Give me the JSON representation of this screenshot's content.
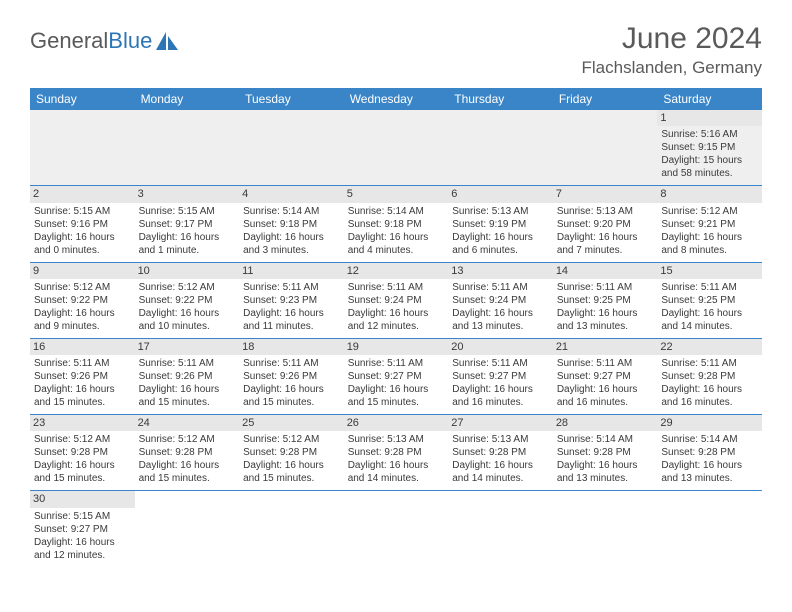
{
  "branding": {
    "word1": "General",
    "word2": "Blue",
    "logo_shape_color": "#2e75b6",
    "text_color": "#5a5a5a"
  },
  "header": {
    "month_title": "June 2024",
    "location": "Flachslanden, Germany"
  },
  "colors": {
    "header_bg": "#3a85c8",
    "header_text": "#ffffff",
    "daynum_bg": "#e7e7e7",
    "row_border": "#3a85c8",
    "body_text": "#3a3a3a",
    "first_row_bg": "#efefef"
  },
  "calendar": {
    "day_headers": [
      "Sunday",
      "Monday",
      "Tuesday",
      "Wednesday",
      "Thursday",
      "Friday",
      "Saturday"
    ],
    "weeks": [
      [
        null,
        null,
        null,
        null,
        null,
        null,
        {
          "n": "1",
          "sunrise": "Sunrise: 5:16 AM",
          "sunset": "Sunset: 9:15 PM",
          "daylight1": "Daylight: 15 hours",
          "daylight2": "and 58 minutes."
        }
      ],
      [
        {
          "n": "2",
          "sunrise": "Sunrise: 5:15 AM",
          "sunset": "Sunset: 9:16 PM",
          "daylight1": "Daylight: 16 hours",
          "daylight2": "and 0 minutes."
        },
        {
          "n": "3",
          "sunrise": "Sunrise: 5:15 AM",
          "sunset": "Sunset: 9:17 PM",
          "daylight1": "Daylight: 16 hours",
          "daylight2": "and 1 minute."
        },
        {
          "n": "4",
          "sunrise": "Sunrise: 5:14 AM",
          "sunset": "Sunset: 9:18 PM",
          "daylight1": "Daylight: 16 hours",
          "daylight2": "and 3 minutes."
        },
        {
          "n": "5",
          "sunrise": "Sunrise: 5:14 AM",
          "sunset": "Sunset: 9:18 PM",
          "daylight1": "Daylight: 16 hours",
          "daylight2": "and 4 minutes."
        },
        {
          "n": "6",
          "sunrise": "Sunrise: 5:13 AM",
          "sunset": "Sunset: 9:19 PM",
          "daylight1": "Daylight: 16 hours",
          "daylight2": "and 6 minutes."
        },
        {
          "n": "7",
          "sunrise": "Sunrise: 5:13 AM",
          "sunset": "Sunset: 9:20 PM",
          "daylight1": "Daylight: 16 hours",
          "daylight2": "and 7 minutes."
        },
        {
          "n": "8",
          "sunrise": "Sunrise: 5:12 AM",
          "sunset": "Sunset: 9:21 PM",
          "daylight1": "Daylight: 16 hours",
          "daylight2": "and 8 minutes."
        }
      ],
      [
        {
          "n": "9",
          "sunrise": "Sunrise: 5:12 AM",
          "sunset": "Sunset: 9:22 PM",
          "daylight1": "Daylight: 16 hours",
          "daylight2": "and 9 minutes."
        },
        {
          "n": "10",
          "sunrise": "Sunrise: 5:12 AM",
          "sunset": "Sunset: 9:22 PM",
          "daylight1": "Daylight: 16 hours",
          "daylight2": "and 10 minutes."
        },
        {
          "n": "11",
          "sunrise": "Sunrise: 5:11 AM",
          "sunset": "Sunset: 9:23 PM",
          "daylight1": "Daylight: 16 hours",
          "daylight2": "and 11 minutes."
        },
        {
          "n": "12",
          "sunrise": "Sunrise: 5:11 AM",
          "sunset": "Sunset: 9:24 PM",
          "daylight1": "Daylight: 16 hours",
          "daylight2": "and 12 minutes."
        },
        {
          "n": "13",
          "sunrise": "Sunrise: 5:11 AM",
          "sunset": "Sunset: 9:24 PM",
          "daylight1": "Daylight: 16 hours",
          "daylight2": "and 13 minutes."
        },
        {
          "n": "14",
          "sunrise": "Sunrise: 5:11 AM",
          "sunset": "Sunset: 9:25 PM",
          "daylight1": "Daylight: 16 hours",
          "daylight2": "and 13 minutes."
        },
        {
          "n": "15",
          "sunrise": "Sunrise: 5:11 AM",
          "sunset": "Sunset: 9:25 PM",
          "daylight1": "Daylight: 16 hours",
          "daylight2": "and 14 minutes."
        }
      ],
      [
        {
          "n": "16",
          "sunrise": "Sunrise: 5:11 AM",
          "sunset": "Sunset: 9:26 PM",
          "daylight1": "Daylight: 16 hours",
          "daylight2": "and 15 minutes."
        },
        {
          "n": "17",
          "sunrise": "Sunrise: 5:11 AM",
          "sunset": "Sunset: 9:26 PM",
          "daylight1": "Daylight: 16 hours",
          "daylight2": "and 15 minutes."
        },
        {
          "n": "18",
          "sunrise": "Sunrise: 5:11 AM",
          "sunset": "Sunset: 9:26 PM",
          "daylight1": "Daylight: 16 hours",
          "daylight2": "and 15 minutes."
        },
        {
          "n": "19",
          "sunrise": "Sunrise: 5:11 AM",
          "sunset": "Sunset: 9:27 PM",
          "daylight1": "Daylight: 16 hours",
          "daylight2": "and 15 minutes."
        },
        {
          "n": "20",
          "sunrise": "Sunrise: 5:11 AM",
          "sunset": "Sunset: 9:27 PM",
          "daylight1": "Daylight: 16 hours",
          "daylight2": "and 16 minutes."
        },
        {
          "n": "21",
          "sunrise": "Sunrise: 5:11 AM",
          "sunset": "Sunset: 9:27 PM",
          "daylight1": "Daylight: 16 hours",
          "daylight2": "and 16 minutes."
        },
        {
          "n": "22",
          "sunrise": "Sunrise: 5:11 AM",
          "sunset": "Sunset: 9:28 PM",
          "daylight1": "Daylight: 16 hours",
          "daylight2": "and 16 minutes."
        }
      ],
      [
        {
          "n": "23",
          "sunrise": "Sunrise: 5:12 AM",
          "sunset": "Sunset: 9:28 PM",
          "daylight1": "Daylight: 16 hours",
          "daylight2": "and 15 minutes."
        },
        {
          "n": "24",
          "sunrise": "Sunrise: 5:12 AM",
          "sunset": "Sunset: 9:28 PM",
          "daylight1": "Daylight: 16 hours",
          "daylight2": "and 15 minutes."
        },
        {
          "n": "25",
          "sunrise": "Sunrise: 5:12 AM",
          "sunset": "Sunset: 9:28 PM",
          "daylight1": "Daylight: 16 hours",
          "daylight2": "and 15 minutes."
        },
        {
          "n": "26",
          "sunrise": "Sunrise: 5:13 AM",
          "sunset": "Sunset: 9:28 PM",
          "daylight1": "Daylight: 16 hours",
          "daylight2": "and 14 minutes."
        },
        {
          "n": "27",
          "sunrise": "Sunrise: 5:13 AM",
          "sunset": "Sunset: 9:28 PM",
          "daylight1": "Daylight: 16 hours",
          "daylight2": "and 14 minutes."
        },
        {
          "n": "28",
          "sunrise": "Sunrise: 5:14 AM",
          "sunset": "Sunset: 9:28 PM",
          "daylight1": "Daylight: 16 hours",
          "daylight2": "and 13 minutes."
        },
        {
          "n": "29",
          "sunrise": "Sunrise: 5:14 AM",
          "sunset": "Sunset: 9:28 PM",
          "daylight1": "Daylight: 16 hours",
          "daylight2": "and 13 minutes."
        }
      ],
      [
        {
          "n": "30",
          "sunrise": "Sunrise: 5:15 AM",
          "sunset": "Sunset: 9:27 PM",
          "daylight1": "Daylight: 16 hours",
          "daylight2": "and 12 minutes."
        },
        null,
        null,
        null,
        null,
        null,
        null
      ]
    ]
  }
}
